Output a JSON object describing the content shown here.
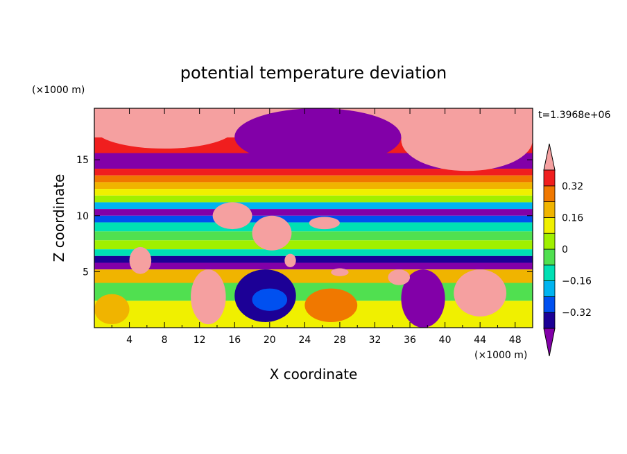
{
  "chart_data": {
    "type": "heatmap",
    "title": "potential temperature deviation",
    "xlabel": "X coordinate",
    "ylabel": "Z coordinate",
    "x_unit_label": "(×1000 m)",
    "y_unit_label": "(×1000 m)",
    "time_label": "t=1.3968e+06",
    "xlim": [
      0,
      50
    ],
    "ylim": [
      0,
      19.6
    ],
    "x_ticks": [
      4,
      8,
      12,
      16,
      20,
      24,
      28,
      32,
      36,
      40,
      44,
      48
    ],
    "x_tick_labels": [
      "4",
      "8",
      "12",
      "16",
      "20",
      "24",
      "28",
      "32",
      "36",
      "40",
      "44",
      "48"
    ],
    "y_ticks": [
      5,
      10,
      15
    ],
    "y_tick_labels": [
      "5",
      "10",
      "15"
    ],
    "colorbar": {
      "levels": [
        -0.4,
        -0.32,
        -0.24,
        -0.16,
        -0.08,
        0,
        0.08,
        0.16,
        0.24,
        0.32,
        0.4
      ],
      "colors": [
        "#8200a8",
        "#1c0096",
        "#0050f0",
        "#00b4f0",
        "#00e0b4",
        "#50e050",
        "#a0f000",
        "#f0f000",
        "#f0b400",
        "#f07800",
        "#f01e1e",
        "#f5a0a0"
      ],
      "tick_values": [
        0.32,
        0.16,
        0,
        -0.16,
        -0.32
      ],
      "tick_labels": [
        "0.32",
        "0.16",
        "0",
        "−0.16",
        "−0.32"
      ],
      "extend": "both"
    },
    "field_bands": [
      {
        "z": [
          17.0,
          19.6
        ],
        "value": 0.45
      },
      {
        "z": [
          15.6,
          17.0
        ],
        "value": 0.36
      },
      {
        "z": [
          14.2,
          15.6
        ],
        "value": -0.45
      },
      {
        "z": [
          13.6,
          14.2
        ],
        "value": 0.36
      },
      {
        "z": [
          13.0,
          13.6
        ],
        "value": 0.28
      },
      {
        "z": [
          12.4,
          13.0
        ],
        "value": 0.2
      },
      {
        "z": [
          11.8,
          12.4
        ],
        "value": 0.12
      },
      {
        "z": [
          11.2,
          11.8
        ],
        "value": 0.04
      },
      {
        "z": [
          10.6,
          11.2
        ],
        "value": -0.2
      },
      {
        "z": [
          10.0,
          10.6
        ],
        "value": -0.45
      },
      {
        "z": [
          9.4,
          10.0
        ],
        "value": -0.28
      },
      {
        "z": [
          8.6,
          9.4
        ],
        "value": -0.12
      },
      {
        "z": [
          7.8,
          8.6
        ],
        "value": -0.04
      },
      {
        "z": [
          7.0,
          7.8
        ],
        "value": 0.04
      },
      {
        "z": [
          6.4,
          7.0
        ],
        "value": -0.12
      },
      {
        "z": [
          5.8,
          6.4
        ],
        "value": -0.36
      },
      {
        "z": [
          5.2,
          5.8
        ],
        "value": -0.45
      },
      {
        "z": [
          4.0,
          5.2
        ],
        "value": 0.2
      },
      {
        "z": [
          2.4,
          4.0
        ],
        "value": -0.04
      },
      {
        "z": [
          0.0,
          2.4
        ],
        "value": 0.12
      }
    ],
    "field_patches": [
      {
        "x": [
          0,
          16
        ],
        "z": [
          16.0,
          19.6
        ],
        "value": 0.45
      },
      {
        "x": [
          16,
          35
        ],
        "z": [
          14.5,
          19.6
        ],
        "value": -0.45
      },
      {
        "x": [
          35,
          50
        ],
        "z": [
          14.0,
          19.6
        ],
        "value": 0.45
      },
      {
        "x": [
          11,
          15
        ],
        "z": [
          0.3,
          5.2
        ],
        "value": 0.45
      },
      {
        "x": [
          16,
          23
        ],
        "z": [
          0.5,
          5.2
        ],
        "value": -0.36
      },
      {
        "x": [
          18,
          22
        ],
        "z": [
          1.5,
          3.5
        ],
        "value": -0.28
      },
      {
        "x": [
          41,
          47
        ],
        "z": [
          1.0,
          5.2
        ],
        "value": 0.45
      },
      {
        "x": [
          35,
          40
        ],
        "z": [
          0,
          5.2
        ],
        "value": -0.45
      },
      {
        "x": [
          4,
          6.5
        ],
        "z": [
          4.8,
          7.2
        ],
        "value": 0.45
      },
      {
        "x": [
          13.5,
          18
        ],
        "z": [
          8.8,
          11.2
        ],
        "value": 0.45
      },
      {
        "x": [
          18,
          22.5
        ],
        "z": [
          6.9,
          10.0
        ],
        "value": 0.45
      },
      {
        "x": [
          24.5,
          28
        ],
        "z": [
          8.8,
          9.9
        ],
        "value": 0.45
      },
      {
        "x": [
          21.7,
          23
        ],
        "z": [
          5.4,
          6.6
        ],
        "value": 0.45
      },
      {
        "x": [
          27,
          29
        ],
        "z": [
          4.6,
          5.3
        ],
        "value": 0.45
      },
      {
        "x": [
          33.5,
          36
        ],
        "z": [
          3.8,
          5.2
        ],
        "value": 0.45
      },
      {
        "x": [
          0,
          4
        ],
        "z": [
          0.3,
          3.0
        ],
        "value": 0.2
      },
      {
        "x": [
          24,
          30
        ],
        "z": [
          0.5,
          3.5
        ],
        "value": 0.28
      }
    ]
  }
}
